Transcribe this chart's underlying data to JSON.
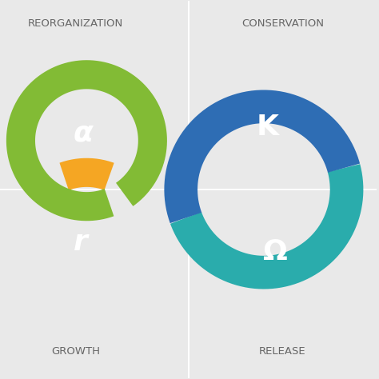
{
  "bg_color": "#e9e9e9",
  "divider_color": "#ffffff",
  "quadrant_labels": {
    "top_left": "REORGANIZATION",
    "top_right": "CONSERVATION",
    "bottom_left": "GROWTH",
    "bottom_right": "RELEASE"
  },
  "label_fontsize": 9.5,
  "label_color": "#666666",
  "phase_labels": {
    "alpha": "α",
    "r": "r",
    "K": "K",
    "omega": "Ω"
  },
  "phase_label_fontsize": 26,
  "green_color": "#82bb35",
  "orange_color": "#f5a623",
  "blue_color": "#2e6db4",
  "teal_color": "#2aacac",
  "fig_width": 4.74,
  "fig_height": 4.74,
  "dpi": 100
}
